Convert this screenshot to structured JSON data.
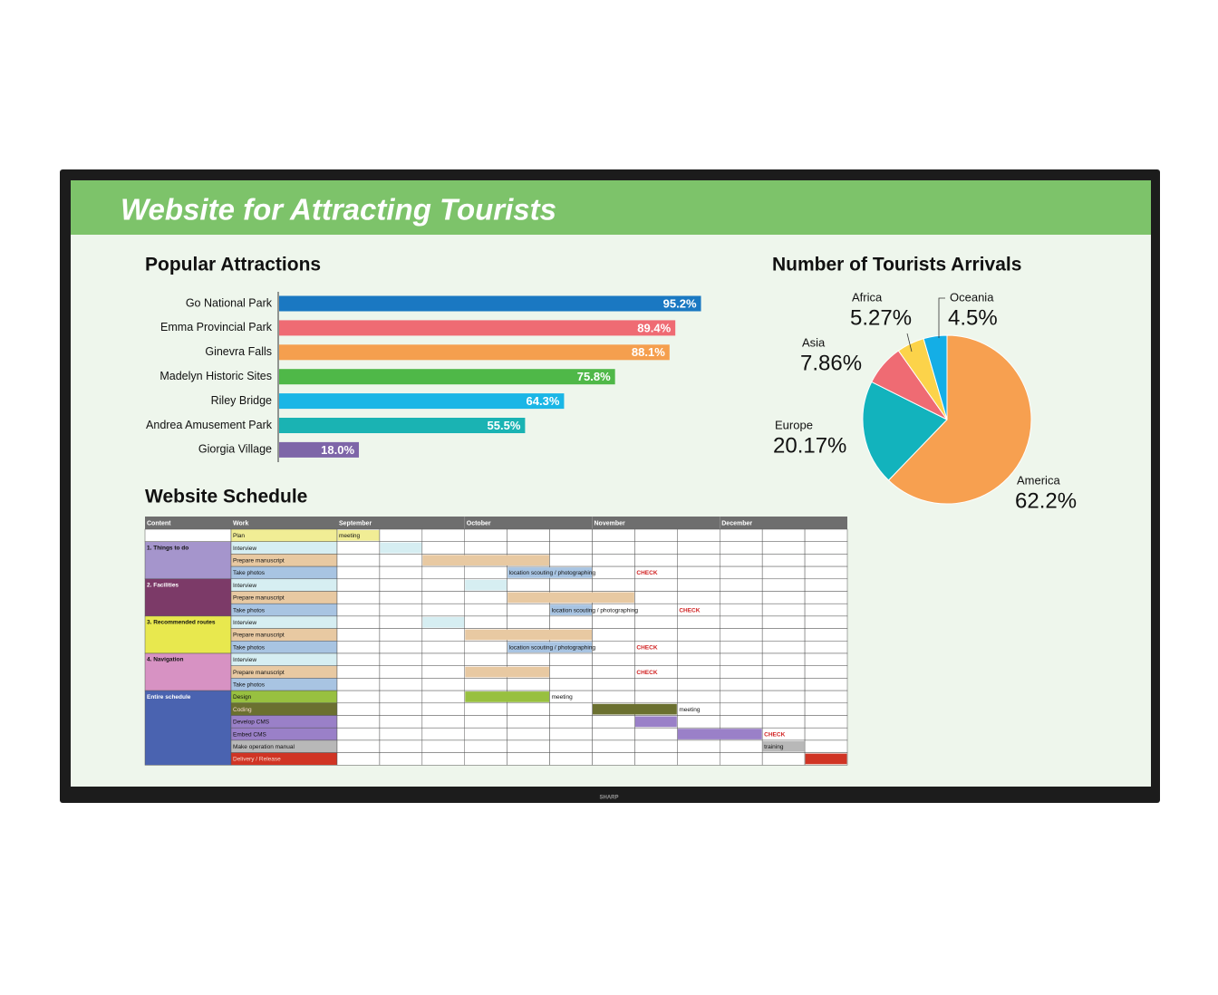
{
  "header": {
    "title": "Website for Attracting Tourists"
  },
  "brand": "SHARP",
  "chart_data": [
    {
      "type": "bar",
      "orientation": "horizontal",
      "title": "Popular Attractions",
      "categories": [
        "Go National Park",
        "Emma Provincial Park",
        "Ginevra Falls",
        "Madelyn Historic Sites",
        "Riley Bridge",
        "Andrea Amusement Park",
        "Giorgia Village"
      ],
      "values": [
        95.2,
        89.4,
        88.1,
        75.8,
        64.3,
        55.5,
        18.0
      ],
      "value_labels": [
        "95.2%",
        "89.4%",
        "88.1%",
        "75.8%",
        "64.3%",
        "55.5%",
        "18.0%"
      ],
      "colors": [
        "#1a78c2",
        "#ef6b73",
        "#f59f4e",
        "#4fb848",
        "#1ab6e6",
        "#1ab3b3",
        "#7e66a8"
      ],
      "xlim": [
        0,
        100
      ]
    },
    {
      "type": "pie",
      "title": "Number of Tourists Arrivals",
      "categories": [
        "America",
        "Europe",
        "Asia",
        "Africa",
        "Oceania"
      ],
      "values": [
        62.2,
        20.17,
        7.86,
        5.27,
        4.5
      ],
      "value_labels": [
        "62.2%",
        "20.17%",
        "7.86%",
        "5.27%",
        "4.5%"
      ],
      "colors": [
        "#f7a050",
        "#12b3bd",
        "#ef6b73",
        "#fcd34a",
        "#14aee6"
      ]
    }
  ],
  "table": {
    "title": "Website Schedule",
    "columns": [
      "Content",
      "Work"
    ],
    "months": [
      "September",
      "October",
      "November",
      "December"
    ],
    "groups": [
      {
        "rows": [
          {
            "work": "Plan",
            "color": "#f1ed95",
            "bars": [
              {
                "start": 0,
                "end": 0
              }
            ],
            "notes": [
              {
                "week": 0,
                "text": "meeting"
              }
            ]
          }
        ]
      },
      {
        "content": "1. Things to do",
        "color": "#a595cc",
        "rows": [
          {
            "work": "Interview",
            "color": "#d6eef2",
            "bars": [
              {
                "start": 1,
                "end": 1
              }
            ]
          },
          {
            "work": "Prepare manuscript",
            "color": "#e8c9a2",
            "bars": [
              {
                "start": 2,
                "end": 4
              }
            ]
          },
          {
            "work": "Take photos",
            "color": "#a8c4e2",
            "bars": [
              {
                "start": 4,
                "end": 5
              }
            ],
            "notes": [
              {
                "week": 4,
                "text": "location scouting / photographing"
              },
              {
                "week": 7,
                "text": "CHECK",
                "color": "#d02020"
              }
            ]
          }
        ]
      },
      {
        "content": "2. Facilities",
        "color": "#7c3a68",
        "rows": [
          {
            "work": "Interview",
            "color": "#d6eef2",
            "bars": [
              {
                "start": 3,
                "end": 3
              }
            ]
          },
          {
            "work": "Prepare manuscript",
            "color": "#e8c9a2",
            "bars": [
              {
                "start": 4,
                "end": 6
              }
            ]
          },
          {
            "work": "Take photos",
            "color": "#a8c4e2",
            "bars": [
              {
                "start": 5,
                "end": 5
              }
            ],
            "notes": [
              {
                "week": 5,
                "text": "location scouting / photographing"
              },
              {
                "week": 8,
                "text": "CHECK",
                "color": "#d02020"
              }
            ]
          }
        ]
      },
      {
        "content": "3. Recommended routes",
        "color": "#e8e84e",
        "rows": [
          {
            "work": "Interview",
            "color": "#d6eef2",
            "bars": [
              {
                "start": 2,
                "end": 2
              }
            ]
          },
          {
            "work": "Prepare manuscript",
            "color": "#e8c9a2",
            "bars": [
              {
                "start": 3,
                "end": 5
              }
            ]
          },
          {
            "work": "Take photos",
            "color": "#a8c4e2",
            "bars": [
              {
                "start": 4,
                "end": 5
              }
            ],
            "notes": [
              {
                "week": 4,
                "text": "location scouting / photographing"
              },
              {
                "week": 7,
                "text": "CHECK",
                "color": "#d02020"
              }
            ]
          }
        ]
      },
      {
        "content": "4. Navigation",
        "color": "#d792c3",
        "rows": [
          {
            "work": "Interview",
            "color": "#d6eef2"
          },
          {
            "work": "Prepare manuscript",
            "color": "#e8c9a2",
            "bars": [
              {
                "start": 3,
                "end": 4
              }
            ],
            "notes": [
              {
                "week": 7,
                "text": "CHECK",
                "color": "#d02020"
              }
            ]
          },
          {
            "work": "Take photos",
            "color": "#a8c4e2"
          }
        ]
      },
      {
        "content": "Entire schedule",
        "color": "#4a63b0",
        "rows": [
          {
            "work": "Design",
            "color": "#98c040",
            "bars": [
              {
                "start": 3,
                "end": 4
              }
            ],
            "notes": [
              {
                "week": 5,
                "text": "meeting"
              }
            ]
          },
          {
            "work": "Coding",
            "color": "#6b7030",
            "bars": [
              {
                "start": 6,
                "end": 7
              }
            ],
            "notes": [
              {
                "week": 8,
                "text": "meeting"
              }
            ]
          },
          {
            "work": "Develop CMS",
            "color": "#9a80c8",
            "bars": [
              {
                "start": 7,
                "end": 7
              }
            ]
          },
          {
            "work": "Embed CMS",
            "color": "#9a80c8",
            "bars": [
              {
                "start": 8,
                "end": 9
              }
            ],
            "notes": [
              {
                "week": 10,
                "text": "CHECK",
                "color": "#d02020"
              }
            ]
          },
          {
            "work": "Make operation manual",
            "color": "#b8b8b8",
            "bars": [
              {
                "start": 10,
                "end": 10
              }
            ],
            "notes": [
              {
                "week": 10,
                "text": "training"
              }
            ]
          },
          {
            "work": "Delivery / Release",
            "color": "#d03424",
            "bars": [
              {
                "start": 11,
                "end": 11
              }
            ]
          }
        ]
      }
    ]
  }
}
